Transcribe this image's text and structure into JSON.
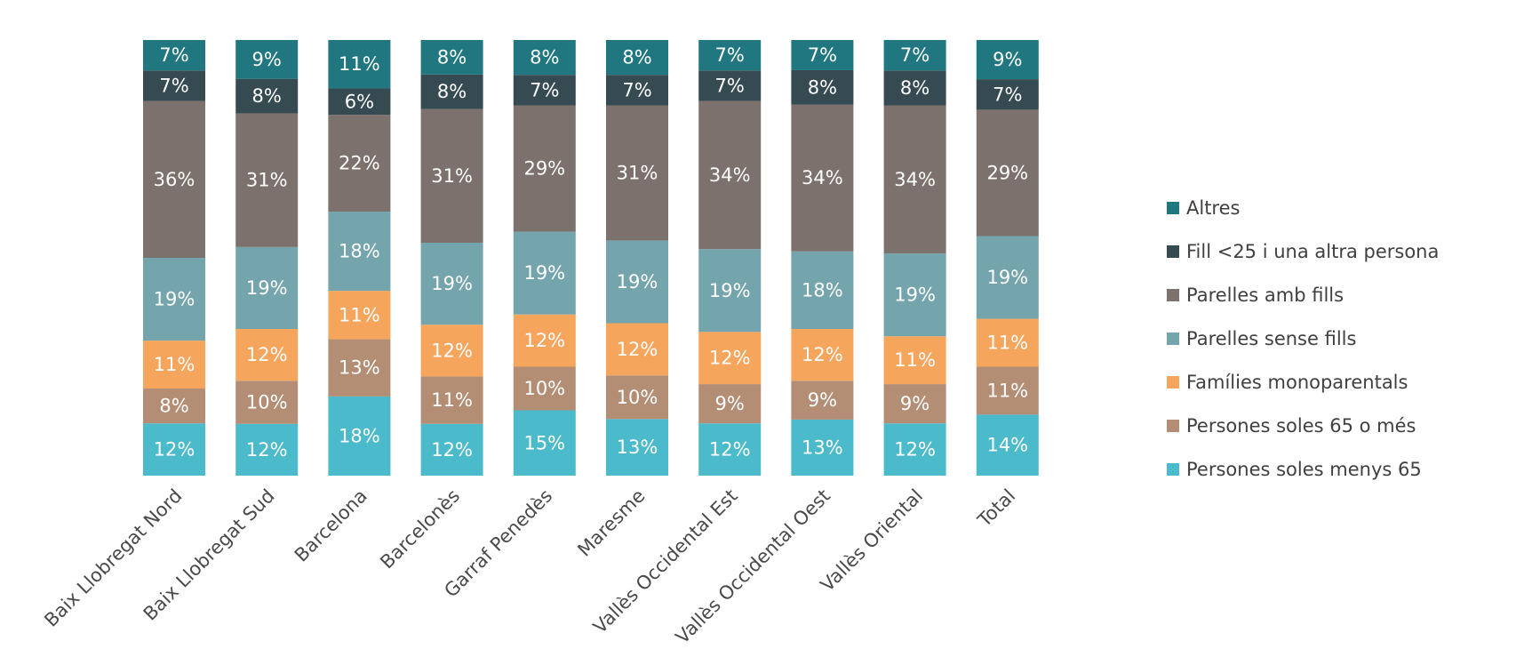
{
  "chart_data": {
    "type": "bar",
    "stacked": true,
    "orientation": "vertical",
    "value_format": "percent",
    "categories": [
      "Baix Llobregat Nord",
      "Baix Llobregat Sud",
      "Barcelona",
      "Barcelonès",
      "Garraf Penedès",
      "Maresme",
      "Vallès Occidental Est",
      "Vallès Occidental Oest",
      "Vallès Oriental",
      "Total"
    ],
    "series": [
      {
        "name": "Persones soles menys 65",
        "color": "#4bbacb",
        "values": [
          12,
          12,
          18,
          12,
          15,
          13,
          12,
          13,
          12,
          14
        ]
      },
      {
        "name": "Persones soles 65 o més",
        "color": "#b38e75",
        "values": [
          8,
          10,
          13,
          11,
          10,
          10,
          9,
          9,
          9,
          11
        ]
      },
      {
        "name": "Famílies  monoparentals",
        "color": "#f6a55d",
        "values": [
          11,
          12,
          11,
          12,
          12,
          12,
          12,
          12,
          11,
          11
        ]
      },
      {
        "name": "Parelles sense fills",
        "color": "#74a4ac",
        "values": [
          19,
          19,
          18,
          19,
          19,
          19,
          19,
          18,
          19,
          19
        ]
      },
      {
        "name": "Parelles amb fills",
        "color": "#7c716c",
        "values": [
          36,
          31,
          22,
          31,
          29,
          31,
          34,
          34,
          34,
          29
        ]
      },
      {
        "name": "Fill <25 i una altra persona",
        "color": "#364a52",
        "values": [
          7,
          8,
          6,
          8,
          7,
          7,
          7,
          8,
          8,
          7
        ]
      },
      {
        "name": "Altres",
        "color": "#21777f",
        "values": [
          7,
          9,
          11,
          8,
          8,
          8,
          7,
          7,
          7,
          9
        ]
      }
    ],
    "legend_position": "right",
    "grid": false,
    "title": "",
    "xlabel": "",
    "ylabel": ""
  }
}
